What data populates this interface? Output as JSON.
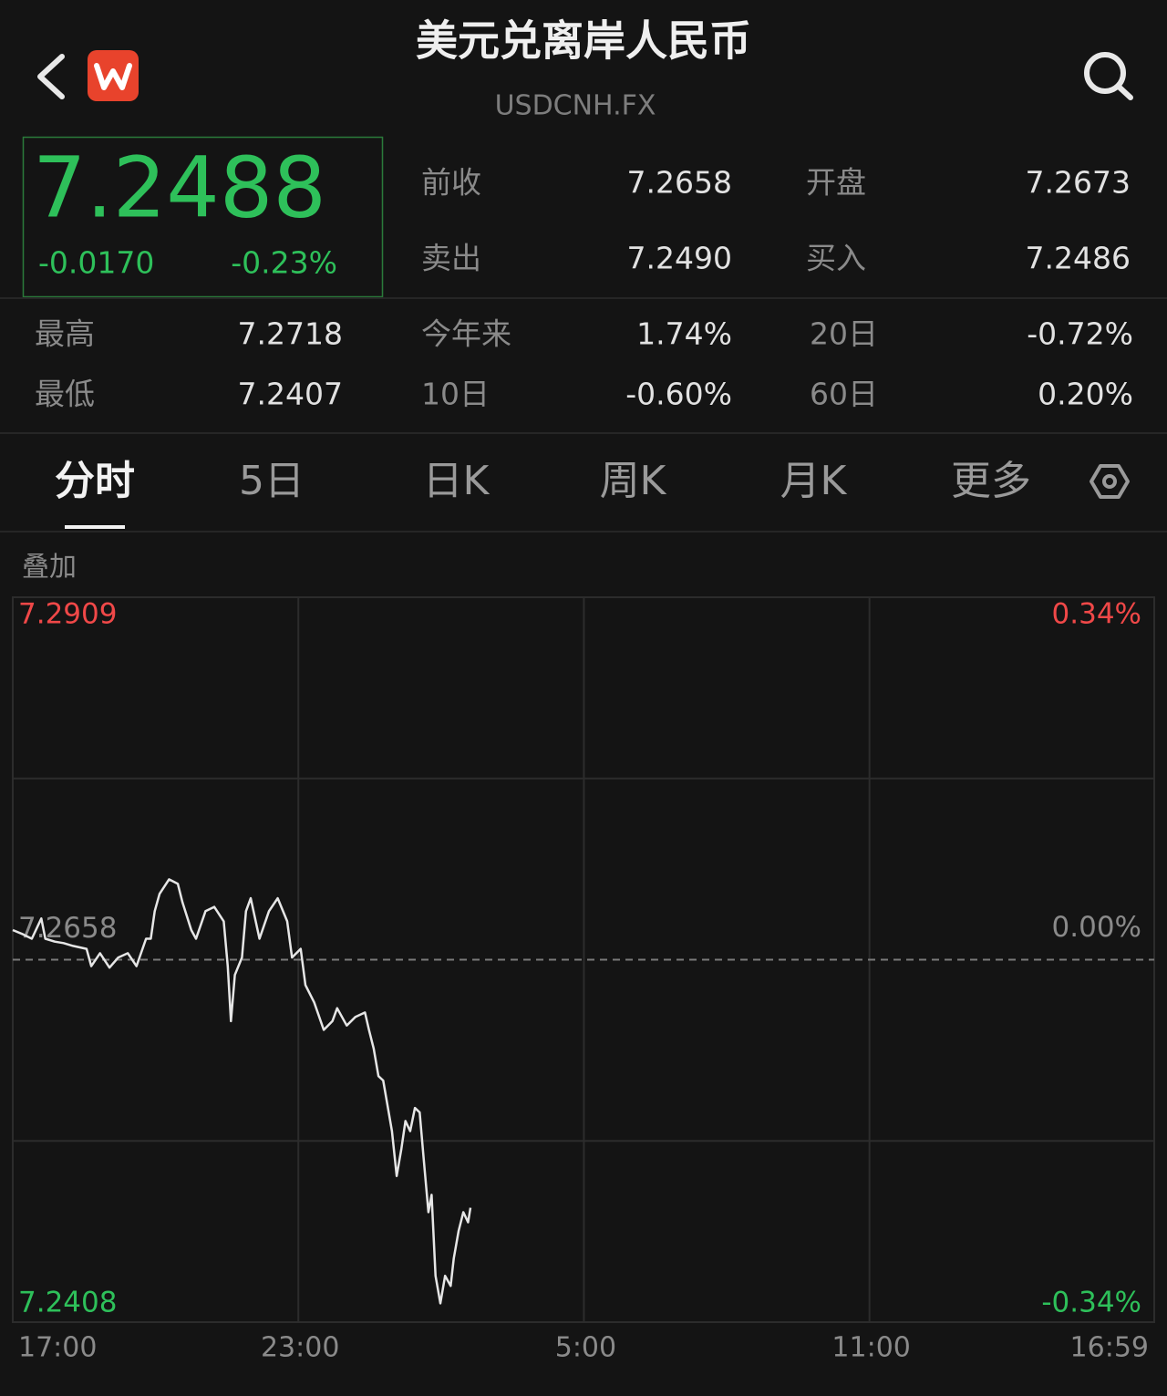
{
  "header": {
    "title": "美元兑离岸人民币",
    "subtitle": "USDCNH.FX"
  },
  "quote": {
    "price": "7.2488",
    "change": "-0.0170",
    "change_percent": "-0.23%"
  },
  "stats": [
    {
      "label": "前收",
      "value": "7.2658"
    },
    {
      "label": "开盘",
      "value": "7.2673"
    },
    {
      "label": "卖出",
      "value": "7.2490"
    },
    {
      "label": "买入",
      "value": "7.2486"
    },
    {
      "label": "最高",
      "value": "7.2718"
    },
    {
      "label": "今年来",
      "value": "1.74%"
    },
    {
      "label": "20日",
      "value": "-0.72%"
    },
    {
      "label": "最低",
      "value": "7.2407"
    },
    {
      "label": "10日",
      "value": "-0.60%"
    },
    {
      "label": "60日",
      "value": "0.20%"
    }
  ],
  "tabs": [
    "分时",
    "5日",
    "日K",
    "周K",
    "月K",
    "更多"
  ],
  "overlay_button": "叠加",
  "chart_data": {
    "type": "line",
    "x": [
      0,
      13,
      24,
      36,
      41,
      53,
      64,
      76,
      93,
      99,
      110,
      122,
      133,
      145,
      156,
      168,
      174,
      179,
      185,
      197,
      208,
      214,
      225,
      231,
      243,
      254,
      266,
      271,
      275,
      280,
      289,
      294,
      300,
      311,
      323,
      334,
      346,
      352,
      363,
      369,
      380,
      392,
      403,
      409,
      421,
      432,
      444,
      449,
      455,
      461,
      467,
      472,
      478,
      484,
      490,
      495,
      501,
      507,
      513,
      518,
      524,
      528,
      533,
      539,
      545,
      552,
      556,
      562,
      568,
      574,
      577
    ],
    "values": [
      7.2679,
      7.2676,
      7.2673,
      7.2687,
      7.2673,
      7.2671,
      7.267,
      7.2668,
      7.2666,
      7.2654,
      7.2663,
      7.2653,
      7.266,
      7.2663,
      7.2654,
      7.2673,
      7.2673,
      7.2692,
      7.2704,
      7.2714,
      7.2711,
      7.2698,
      7.2679,
      7.2673,
      7.2692,
      7.2695,
      7.2685,
      7.2654,
      7.2616,
      7.2648,
      7.266,
      7.2692,
      7.2701,
      7.2673,
      7.2692,
      7.2701,
      7.2685,
      7.266,
      7.2666,
      7.2641,
      7.2629,
      7.261,
      7.2616,
      7.2625,
      7.2613,
      7.2619,
      7.2622,
      7.261,
      7.2597,
      7.2578,
      7.2575,
      7.2559,
      7.254,
      7.2509,
      7.2528,
      7.2547,
      7.254,
      7.2556,
      7.2553,
      7.2521,
      7.2484,
      7.2496,
      7.244,
      7.2421,
      7.244,
      7.2433,
      7.2452,
      7.2471,
      7.2484,
      7.2477,
      7.2487
    ],
    "color": "#e6e6e6",
    "up_color": "#f04848",
    "down_color": "#2ec05a",
    "grid": true,
    "xlim": [
      0,
      1439
    ],
    "xticks": [
      {
        "value": 0,
        "label": "17:00"
      },
      {
        "value": 360,
        "label": "23:00"
      },
      {
        "value": 720,
        "label": "5:00"
      },
      {
        "value": 1080,
        "label": "11:00"
      },
      {
        "value": 1439,
        "label": "16:59"
      }
    ],
    "ylim": [
      7.2408,
      7.2909
    ],
    "yticks": [
      7.2408,
      7.2658,
      7.2909
    ],
    "y2lim": [
      -0.34,
      0.34
    ],
    "y2ticks": [
      {
        "value": -0.34,
        "label": "-0.34%"
      },
      {
        "value": 0,
        "label": "0.00%"
      },
      {
        "value": 0.34,
        "label": "0.34%"
      }
    ]
  }
}
